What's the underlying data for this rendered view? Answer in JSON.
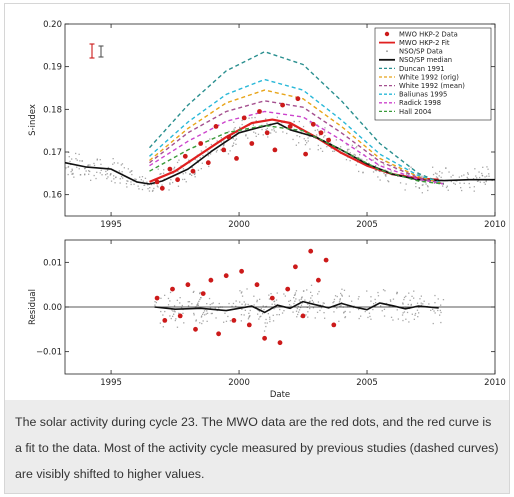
{
  "caption": "The solar activity during cycle 23. The MWO data are the red dots, and the red curve is a fit to the data. Most of the activity cycle measured by previous studies (dashed curves) are visibly shifted to higher values.",
  "chart_data": [
    {
      "type": "line",
      "ylabel": "S-index",
      "xlim": [
        1993.2,
        2010
      ],
      "ylim": [
        0.155,
        0.2
      ],
      "x_ticks": [
        1995,
        2000,
        2005,
        2010
      ],
      "y_ticks": [
        0.16,
        0.17,
        0.18,
        0.19,
        0.2
      ],
      "y_tick_labels": [
        "0.16",
        "0.17",
        "0.18",
        "0.19",
        "0.20"
      ],
      "legend_position": "top-right",
      "legend": [
        {
          "label": "MWO HKP-2 Data",
          "color": "#cc1a1a",
          "style": "dot"
        },
        {
          "label": "MWO HKP-2 Fit",
          "color": "#e02020",
          "style": "solid"
        },
        {
          "label": "NSO/SP Data",
          "color": "#999999",
          "style": "point"
        },
        {
          "label": "NSO/SP median",
          "color": "#111111",
          "style": "solid"
        },
        {
          "label": "Duncan 1991",
          "color": "#2a8f8f",
          "style": "dashed"
        },
        {
          "label": "White 1992 (orig)",
          "color": "#e8a51a",
          "style": "dashed"
        },
        {
          "label": "White 1992 (mean)",
          "color": "#a4508f",
          "style": "dashed"
        },
        {
          "label": "Baliunas 1995",
          "color": "#29b8d8",
          "style": "dashed"
        },
        {
          "label": "Radick 1998",
          "color": "#cc44cc",
          "style": "dashed"
        },
        {
          "label": "Hall 2004",
          "color": "#3a9a3a",
          "style": "dashed"
        }
      ],
      "series": [
        {
          "name": "MWO HKP-2 Fit",
          "x": [
            1996.5,
            1997.5,
            1998.5,
            1999.5,
            2000.5,
            2001.3,
            2002.0,
            2003.0,
            2004.0,
            2005.0,
            2006.0,
            2007.0,
            2007.8
          ],
          "y": [
            0.163,
            0.1655,
            0.1695,
            0.1735,
            0.1768,
            0.1776,
            0.1768,
            0.1735,
            0.1698,
            0.1668,
            0.1648,
            0.1638,
            0.1635
          ]
        },
        {
          "name": "NSO/SP median",
          "x": [
            1993.2,
            1994.0,
            1995.0,
            1996.0,
            1996.5,
            1997.0,
            1998.0,
            1999.0,
            2000.0,
            2000.8,
            2001.5,
            2002.0,
            2003.0,
            2004.0,
            2005.0,
            2006.0,
            2007.0,
            2008.0,
            2009.0,
            2010.0
          ],
          "y": [
            0.1675,
            0.1665,
            0.166,
            0.163,
            0.1625,
            0.1632,
            0.166,
            0.1705,
            0.1745,
            0.1758,
            0.1768,
            0.1752,
            0.1735,
            0.1705,
            0.1672,
            0.1648,
            0.1635,
            0.1633,
            0.1635,
            0.1635
          ]
        },
        {
          "name": "Duncan 1991",
          "x": [
            1996.5,
            1998,
            1999.5,
            2001,
            2002.5,
            2004,
            2005.5,
            2007,
            2008
          ],
          "y": [
            0.171,
            0.181,
            0.189,
            0.1935,
            0.1905,
            0.182,
            0.172,
            0.165,
            0.1625
          ]
        },
        {
          "name": "Baliunas 1995",
          "x": [
            1996.5,
            1998,
            1999.5,
            2001,
            2002.5,
            2004,
            2005.5,
            2007,
            2008
          ],
          "y": [
            0.169,
            0.177,
            0.1835,
            0.187,
            0.1845,
            0.1775,
            0.1695,
            0.1645,
            0.1625
          ]
        },
        {
          "name": "White 1992 (orig)",
          "x": [
            1996.5,
            1998,
            1999.5,
            2001,
            2002.5,
            2004,
            2005.5,
            2007,
            2008
          ],
          "y": [
            0.168,
            0.1755,
            0.1815,
            0.1845,
            0.1825,
            0.176,
            0.1685,
            0.1642,
            0.1625
          ]
        },
        {
          "name": "White 1992 (mean)",
          "x": [
            1996.5,
            1998,
            1999.5,
            2001,
            2002.5,
            2004,
            2005.5,
            2007,
            2008
          ],
          "y": [
            0.1675,
            0.1745,
            0.1795,
            0.182,
            0.1805,
            0.1745,
            0.1678,
            0.164,
            0.1625
          ]
        },
        {
          "name": "Radick 1998",
          "x": [
            1996.5,
            1998,
            1999.5,
            2001,
            2002.5,
            2004,
            2005.5,
            2007,
            2008
          ],
          "y": [
            0.1668,
            0.1725,
            0.1772,
            0.1795,
            0.1782,
            0.1728,
            0.1668,
            0.1636,
            0.1625
          ]
        },
        {
          "name": "Hall 2004",
          "x": [
            1996.5,
            1998,
            1999.5,
            2001,
            2002.5,
            2004,
            2005.5,
            2007,
            2008
          ],
          "y": [
            0.1655,
            0.1705,
            0.1745,
            0.1762,
            0.175,
            0.1705,
            0.1658,
            0.1632,
            0.1625
          ]
        },
        {
          "name": "MWO HKP-2 Data",
          "x": [
            1996.8,
            1997.0,
            1997.3,
            1997.6,
            1997.9,
            1998.2,
            1998.5,
            1998.8,
            1999.1,
            1999.4,
            1999.6,
            1999.9,
            2000.2,
            2000.5,
            2000.8,
            2001.1,
            2001.4,
            2001.7,
            2002.0,
            2002.3,
            2002.6,
            2002.9,
            2003.2,
            2003.5
          ],
          "y": [
            0.163,
            0.1615,
            0.166,
            0.1635,
            0.169,
            0.1655,
            0.172,
            0.1675,
            0.176,
            0.1705,
            0.1735,
            0.1685,
            0.178,
            0.172,
            0.1795,
            0.1745,
            0.1705,
            0.181,
            0.176,
            0.1825,
            0.1695,
            0.1765,
            0.1745,
            0.1728
          ]
        }
      ]
    },
    {
      "type": "line",
      "xlabel": "Date",
      "ylabel": "Residual",
      "xlim": [
        1993.2,
        2010
      ],
      "ylim": [
        -0.015,
        0.015
      ],
      "x_ticks": [
        1995,
        2000,
        2005,
        2010
      ],
      "y_ticks": [
        -0.01,
        0.0,
        0.01
      ],
      "y_tick_labels": [
        "−0.01",
        "0.00",
        "0.01"
      ],
      "series": [
        {
          "name": "NSO/SP median residual",
          "x": [
            1996.7,
            1997.5,
            1998.5,
            1999.5,
            2000.5,
            2001.0,
            2001.5,
            2002.0,
            2002.5,
            2003.0,
            2003.5,
            2004.0,
            2004.5,
            2005.0,
            2005.5,
            2006.0,
            2006.5,
            2007.0,
            2007.8
          ],
          "y": [
            0.0,
            -0.0005,
            -0.0003,
            -0.0008,
            0.0002,
            -0.0012,
            0.0004,
            -0.0003,
            0.0012,
            0.0005,
            -0.0002,
            0.0008,
            0.0,
            -0.0006,
            0.0009,
            0.0003,
            -0.0004,
            0.0002,
            -0.0002
          ]
        },
        {
          "name": "MWO residuals",
          "x": [
            1996.8,
            1997.1,
            1997.4,
            1997.7,
            1998.0,
            1998.3,
            1998.6,
            1998.9,
            1999.2,
            1999.5,
            1999.8,
            2000.1,
            2000.4,
            2000.7,
            2001.0,
            2001.3,
            2001.6,
            2001.9,
            2002.2,
            2002.5,
            2002.8,
            2003.1,
            2003.4,
            2003.7
          ],
          "y": [
            0.002,
            -0.003,
            0.004,
            -0.002,
            0.005,
            -0.005,
            0.003,
            0.006,
            -0.006,
            0.007,
            -0.003,
            0.008,
            -0.004,
            0.005,
            -0.007,
            0.002,
            -0.008,
            0.004,
            0.009,
            -0.002,
            0.0125,
            0.006,
            0.0105,
            -0.004
          ]
        }
      ]
    }
  ]
}
